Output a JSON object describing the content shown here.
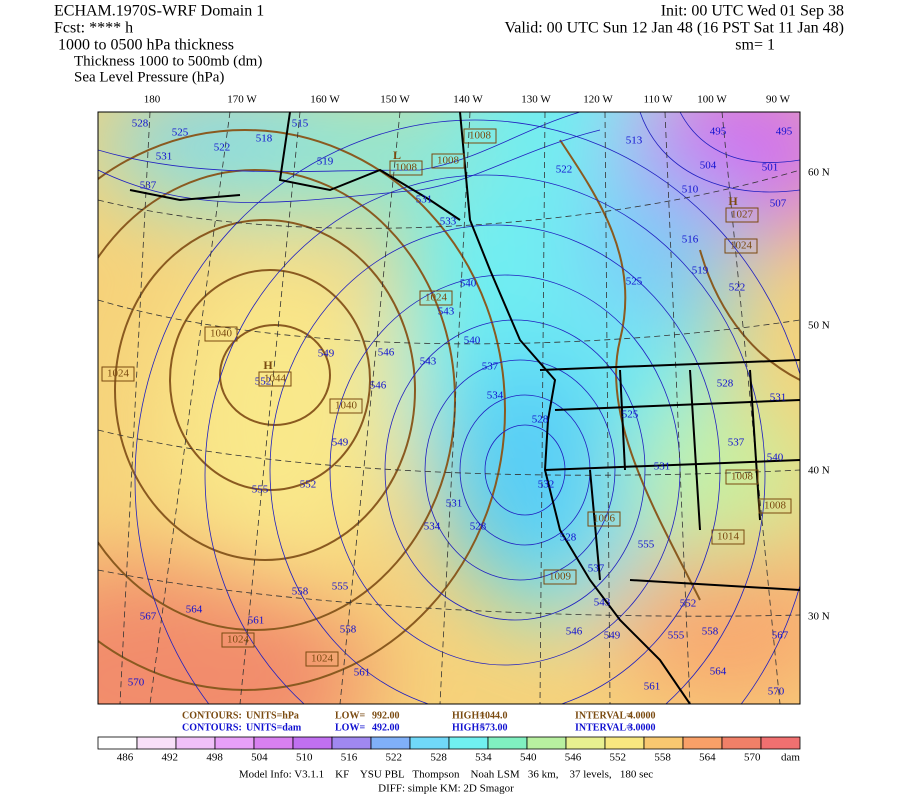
{
  "header": {
    "left": [
      "ECHAM.1970S-WRF Domain 1",
      "Fcst: **** h",
      "1000 to 0500 hPa thickness"
    ],
    "right": [
      "Init: 00 UTC Wed 01 Sep 38",
      "Valid: 00 UTC Sun 12 Jan 48 (16 PST Sat 11 Jan 48)",
      "sm= 1"
    ],
    "fields": [
      "Thickness 1000 to 500mb (dm)",
      "Sea Level Pressure (hPa)"
    ]
  },
  "map": {
    "lon_labels": [
      "180",
      "170 W",
      "160 W",
      "150 W",
      "140 W",
      "130 W",
      "120 W",
      "110 W",
      "100 W",
      "90 W"
    ],
    "lat_labels": [
      "60 N",
      "50 N",
      "40 N",
      "30 N"
    ],
    "thickness_labels": [
      "528",
      "525",
      "522",
      "518",
      "515",
      "531",
      "537",
      "519",
      "531",
      "533",
      "522",
      "513",
      "495",
      "495",
      "504",
      "501",
      "510",
      "507",
      "516",
      "519",
      "522",
      "525",
      "540",
      "543",
      "549",
      "546",
      "543",
      "540",
      "537",
      "546",
      "534",
      "528",
      "525",
      "528",
      "531",
      "537",
      "540",
      "531",
      "552",
      "549",
      "552",
      "555",
      "531",
      "534",
      "528",
      "532",
      "528",
      "537",
      "543",
      "546",
      "549",
      "555",
      "552",
      "555",
      "558",
      "567",
      "564",
      "561",
      "570",
      "570",
      "567",
      "564",
      "561",
      "558",
      "555",
      "558",
      "561"
    ],
    "slp_labels": [
      "1008",
      "1008",
      "1008",
      "1024",
      "1040",
      "1024",
      "1044",
      "1040",
      "1027",
      "1024",
      "1008",
      "1008",
      "1014",
      "1006",
      "1009",
      "1024",
      "1024"
    ],
    "centers": [
      "L",
      "H",
      "H"
    ]
  },
  "contour_info": [
    [
      "CONTOURS:",
      "UNITS=hPa",
      "LOW=",
      "992.00",
      "HIGH=",
      "1044.0",
      "INTERVAL=",
      "4.0000"
    ],
    [
      "CONTOURS:",
      "UNITS=dam",
      "LOW=",
      "492.00",
      "HIGH=",
      "573.00",
      "INTERVAL=",
      "3.0000"
    ]
  ],
  "colorbar": {
    "labels": [
      "486",
      "492",
      "498",
      "504",
      "510",
      "516",
      "522",
      "528",
      "534",
      "540",
      "546",
      "552",
      "558",
      "564",
      "570"
    ],
    "unit": "dam"
  },
  "footer": [
    "Model Info: V3.1.1    KF    YSU PBL   Thompson    Noah LSM   36 km,    37 levels,   180 sec",
    "DIFF: simple KM: 2D Smagor"
  ]
}
